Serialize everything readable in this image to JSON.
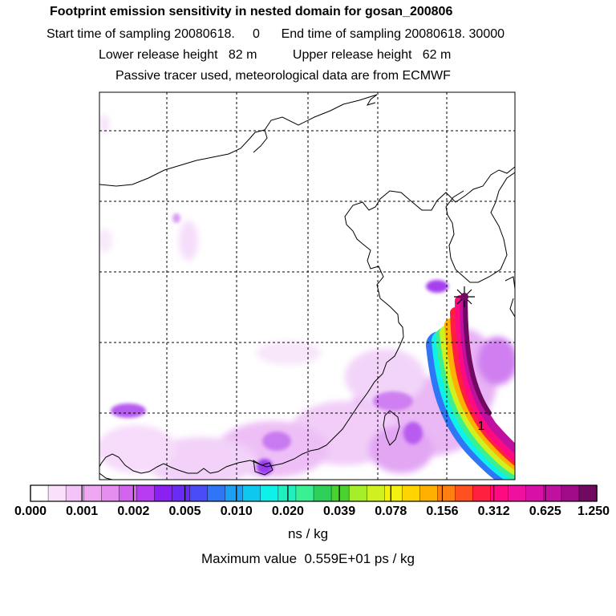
{
  "header": {
    "title": "Footprint emission sensitivity in nested domain for gosan_200806",
    "line2": "Start time of sampling 20080618.     0      End time of sampling 20080618. 30000",
    "line3": "Lower release height   82 m          Upper release height   62 m",
    "line4": "Passive tracer used, meteorological data are from ECMWF"
  },
  "map": {
    "marker_label": "1",
    "grid": true
  },
  "colorbar": {
    "colors": [
      "#ffffff",
      "#fbe0fb",
      "#f5c4f7",
      "#efa6f3",
      "#e58ef0",
      "#d264ee",
      "#b83cf2",
      "#8a20f2",
      "#6b2bf6",
      "#4a4cf8",
      "#2f76f6",
      "#1aa0f4",
      "#0fc8f0",
      "#0ef0ea",
      "#20f0c0",
      "#3af090",
      "#2fd05a",
      "#4ad030",
      "#a6ee28",
      "#d0f020",
      "#f4f010",
      "#ffd400",
      "#ffb000",
      "#ff8010",
      "#ff5020",
      "#ff2040",
      "#ff0a80",
      "#f010a0",
      "#d810a8",
      "#c010a0",
      "#a00a88",
      "#700a60"
    ],
    "ticks": [
      "0.000",
      "0.001",
      "0.002",
      "0.005",
      "0.010",
      "0.020",
      "0.039",
      "0.078",
      "0.156",
      "0.312",
      "0.625",
      "1.250"
    ],
    "units": "ns / kg"
  },
  "footer": {
    "maximum": "Maximum value  0.559E+01 ps / kg"
  }
}
